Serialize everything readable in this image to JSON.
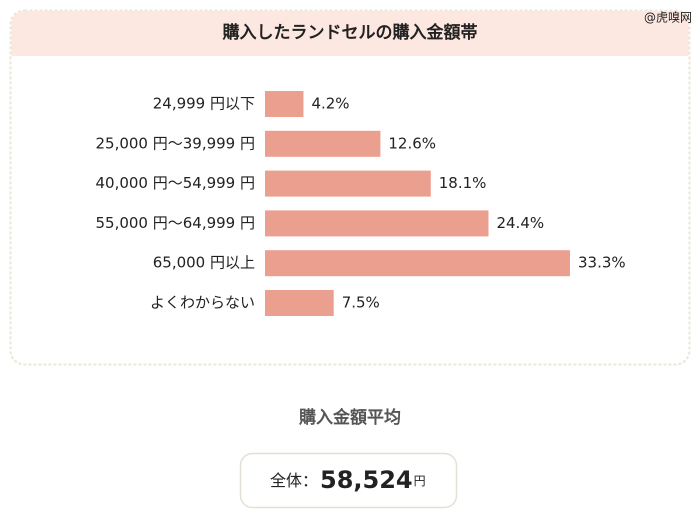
{
  "chart_data": {
    "type": "bar",
    "orientation": "horizontal",
    "title": "購入したランドセルの購入金額帯",
    "categories": [
      "24,999 円以下",
      "25,000 円〜39,999 円",
      "40,000 円〜54,999 円",
      "55,000 円〜64,999 円",
      "65,000 円以上",
      "よくわからない"
    ],
    "values": [
      4.2,
      12.6,
      18.1,
      24.4,
      33.3,
      7.5
    ],
    "value_labels": [
      "4.2%",
      "12.6%",
      "18.1%",
      "24.4%",
      "33.3%",
      "7.5%"
    ],
    "color": "#eb9f8e"
  },
  "watermark": "@虎嗅网",
  "summary": {
    "heading": "購入金額平均",
    "label": "全体：",
    "amount": "58,524",
    "unit": "円"
  }
}
